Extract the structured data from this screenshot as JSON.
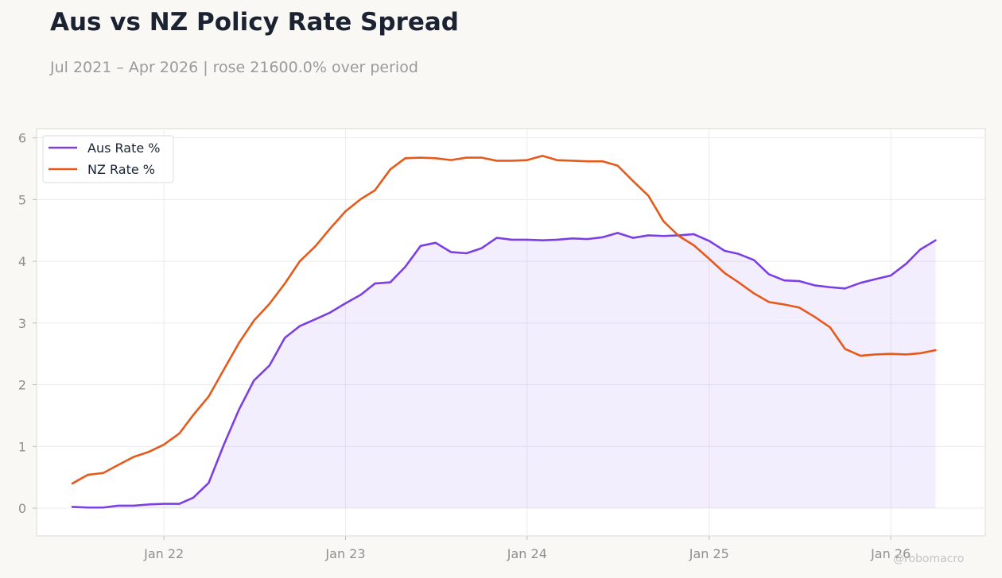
{
  "header": {
    "title": "Aus vs NZ Policy Rate Spread",
    "subtitle": "Jul 2021 – Apr 2026 | rose 21600.0% over period"
  },
  "watermark": "@robomacro",
  "chart_data": {
    "type": "line",
    "title": "Aus vs NZ Policy Rate Spread",
    "subtitle": "Jul 2021 – Apr 2026 | rose 21600.0% over period",
    "xlabel": "",
    "ylabel": "",
    "ylim": [
      -0.45,
      6.15
    ],
    "xlim": [
      "2021-04-20",
      "2026-07-10"
    ],
    "grid": true,
    "legend_position": "top-left",
    "x_tick_labels": [
      {
        "date": "2022-01-01",
        "label": "Jan 22"
      },
      {
        "date": "2023-01-01",
        "label": "Jan 23"
      },
      {
        "date": "2024-01-01",
        "label": "Jan 24"
      },
      {
        "date": "2025-01-01",
        "label": "Jan 25"
      },
      {
        "date": "2026-01-01",
        "label": "Jan 26"
      }
    ],
    "y_ticks": [
      0,
      1,
      2,
      3,
      4,
      5,
      6
    ],
    "x": [
      "2021-07-01",
      "2021-08-01",
      "2021-09-01",
      "2021-10-01",
      "2021-11-01",
      "2021-12-01",
      "2022-01-01",
      "2022-02-01",
      "2022-03-01",
      "2022-04-01",
      "2022-05-01",
      "2022-06-01",
      "2022-07-01",
      "2022-08-01",
      "2022-09-01",
      "2022-10-01",
      "2022-11-01",
      "2022-12-01",
      "2023-01-01",
      "2023-02-01",
      "2023-03-01",
      "2023-04-01",
      "2023-05-01",
      "2023-06-01",
      "2023-07-01",
      "2023-08-01",
      "2023-09-01",
      "2023-10-01",
      "2023-11-01",
      "2023-12-01",
      "2024-01-01",
      "2024-02-01",
      "2024-03-01",
      "2024-04-01",
      "2024-05-01",
      "2024-06-01",
      "2024-07-01",
      "2024-08-01",
      "2024-09-01",
      "2024-10-01",
      "2024-11-01",
      "2024-12-01",
      "2025-01-01",
      "2025-02-01",
      "2025-03-01",
      "2025-04-01",
      "2025-05-01",
      "2025-06-01",
      "2025-07-01",
      "2025-08-01",
      "2025-09-01",
      "2025-10-01",
      "2025-11-01",
      "2025-12-01",
      "2026-01-01",
      "2026-02-01",
      "2026-03-01",
      "2026-04-01"
    ],
    "series": [
      {
        "name": "Aus Rate %",
        "color": "#7b3fe4",
        "fill": true,
        "values": [
          0.02,
          0.01,
          0.01,
          0.04,
          0.04,
          0.06,
          0.07,
          0.07,
          0.17,
          0.41,
          1.02,
          1.6,
          2.07,
          2.31,
          2.76,
          2.95,
          3.06,
          3.17,
          3.32,
          3.46,
          3.64,
          3.66,
          3.91,
          4.25,
          4.3,
          4.15,
          4.13,
          4.21,
          4.38,
          4.35,
          4.35,
          4.34,
          4.35,
          4.37,
          4.36,
          4.39,
          4.46,
          4.38,
          4.42,
          4.41,
          4.42,
          4.44,
          4.33,
          4.17,
          4.12,
          4.02,
          3.79,
          3.69,
          3.68,
          3.61,
          3.58,
          3.56,
          3.65,
          3.71,
          3.77,
          3.96,
          4.19,
          4.34
        ]
      },
      {
        "name": "NZ Rate %",
        "color": "#e55a1b",
        "fill": false,
        "values": [
          0.4,
          0.54,
          0.57,
          0.7,
          0.83,
          0.91,
          1.03,
          1.21,
          1.51,
          1.81,
          2.24,
          2.68,
          3.04,
          3.31,
          3.64,
          4.0,
          4.24,
          4.53,
          4.81,
          5.01,
          5.15,
          5.49,
          5.67,
          5.68,
          5.67,
          5.64,
          5.68,
          5.68,
          5.63,
          5.63,
          5.64,
          5.71,
          5.64,
          5.63,
          5.62,
          5.62,
          5.55,
          5.3,
          5.06,
          4.65,
          4.41,
          4.26,
          4.04,
          3.81,
          3.66,
          3.48,
          3.34,
          3.3,
          3.25,
          3.1,
          2.93,
          2.58,
          2.47,
          2.49,
          2.5,
          2.49,
          2.51,
          2.56
        ]
      }
    ]
  }
}
